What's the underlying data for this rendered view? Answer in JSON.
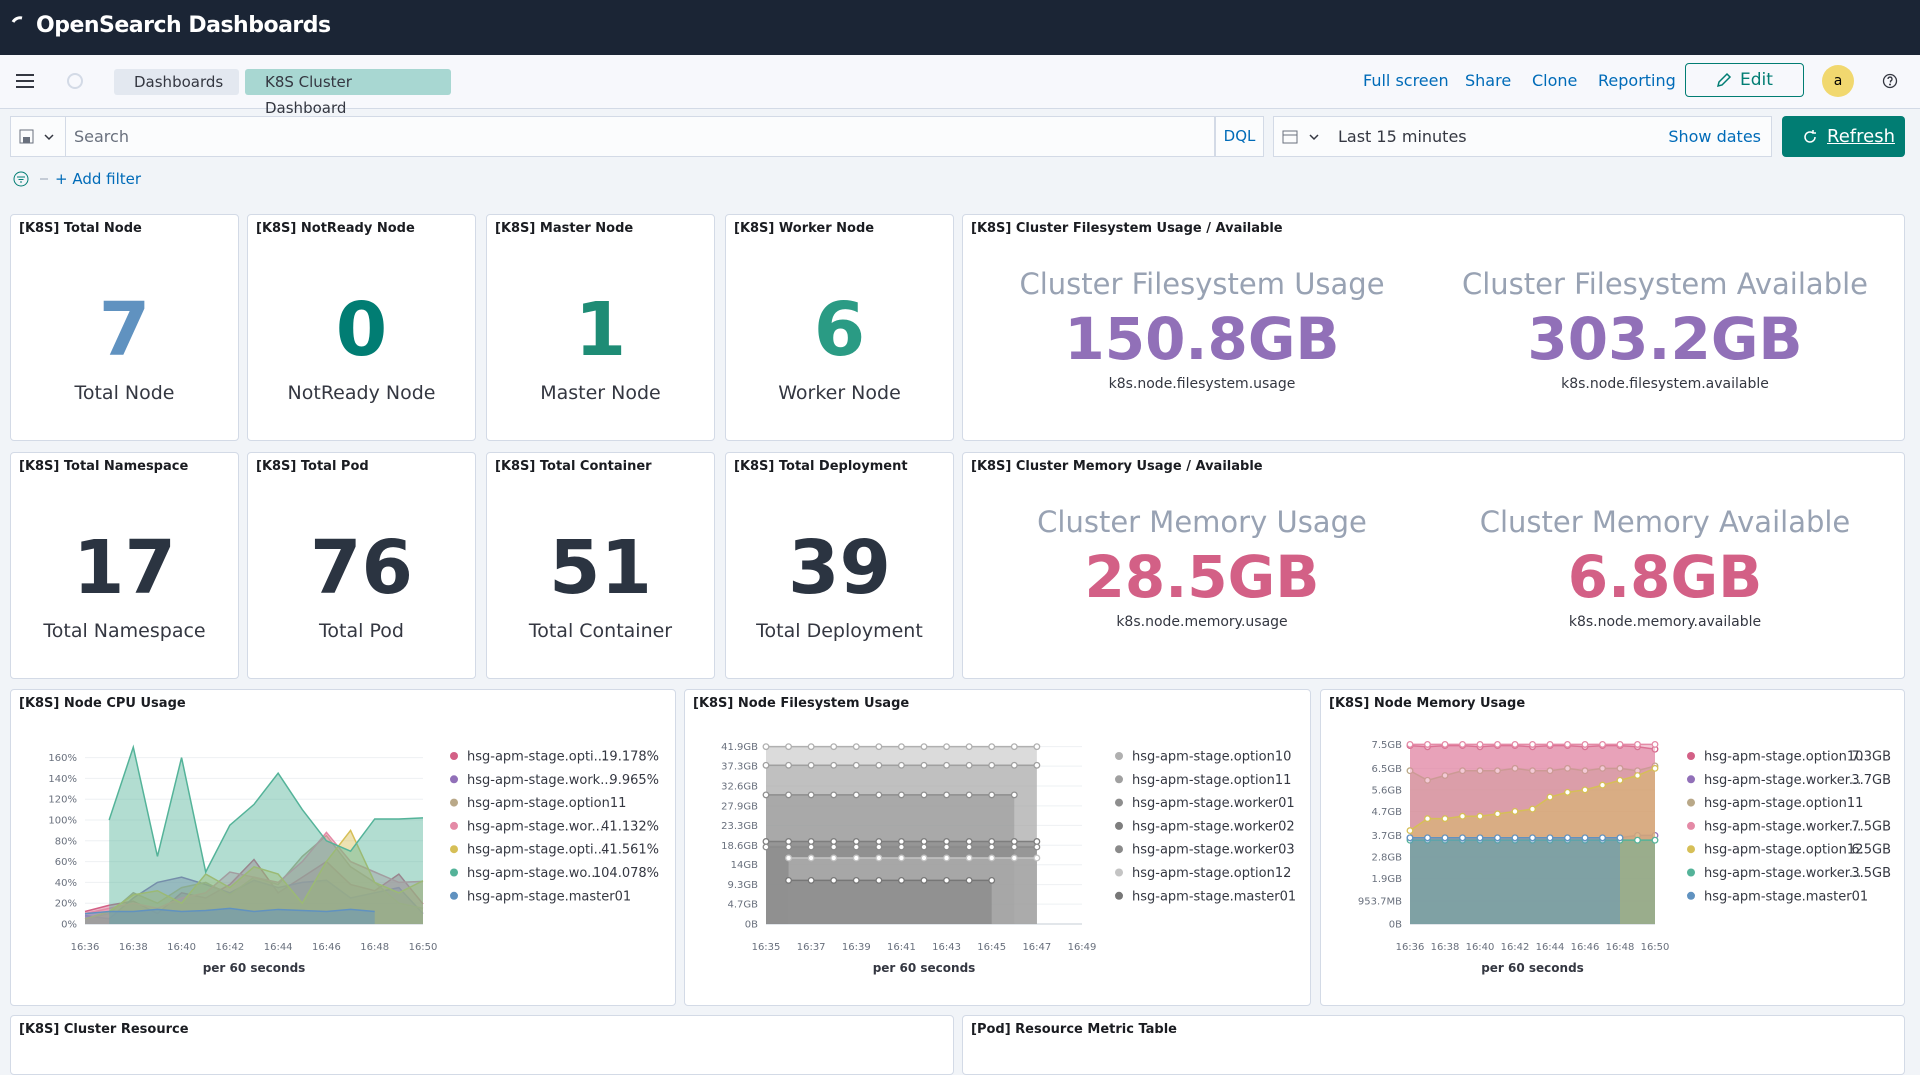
{
  "header": {
    "brand": "OpenSearch Dashboards"
  },
  "nav": {
    "breadcrumbs": [
      "Dashboards",
      "K8S Cluster Dashboard"
    ],
    "actions": [
      "Full screen",
      "Share",
      "Clone",
      "Reporting"
    ],
    "edit": "Edit",
    "avatar": "a"
  },
  "query": {
    "placeholder": "Search",
    "language": "DQL",
    "time": "Last 15 minutes",
    "show_dates": "Show dates",
    "refresh": "Refresh",
    "add_filter": "+ Add filter"
  },
  "metrics": [
    {
      "title": "[K8S] Total Node",
      "value": 7,
      "label": "Total Node",
      "color": "#6092c0"
    },
    {
      "title": "[K8S] NotReady Node",
      "value": 0,
      "label": "NotReady Node",
      "color": "#017d73"
    },
    {
      "title": "[K8S] Master Node",
      "value": 1,
      "label": "Master Node",
      "color": "#1e8c75"
    },
    {
      "title": "[K8S] Worker Node",
      "value": 6,
      "label": "Worker Node",
      "color": "#2a9b84"
    },
    {
      "title": "[K8S] Total Namespace",
      "value": 17,
      "label": "Total Namespace",
      "color": "#2b3441"
    },
    {
      "title": "[K8S] Total Pod",
      "value": 76,
      "label": "Total Pod",
      "color": "#2b3441"
    },
    {
      "title": "[K8S] Total Container",
      "value": 51,
      "label": "Total Container",
      "color": "#2b3441"
    },
    {
      "title": "[K8S] Total Deployment",
      "value": 39,
      "label": "Total Deployment",
      "color": "#2b3441"
    }
  ],
  "dual_metrics": [
    {
      "title": "[K8S] Cluster Filesystem Usage / Available",
      "color": "#9170b8",
      "items": [
        {
          "label": "Cluster Filesystem Usage",
          "value": "150.8GB",
          "field": "k8s.node.filesystem.usage"
        },
        {
          "label": "Cluster Filesystem Available",
          "value": "303.2GB",
          "field": "k8s.node.filesystem.available"
        }
      ]
    },
    {
      "title": "[K8S] Cluster Memory Usage / Available",
      "color": "#d36086",
      "items": [
        {
          "label": "Cluster Memory Usage",
          "value": "28.5GB",
          "field": "k8s.node.memory.usage"
        },
        {
          "label": "Cluster Memory Available",
          "value": "6.8GB",
          "field": "k8s.node.memory.available"
        }
      ]
    }
  ],
  "charts": [
    {
      "type": "area",
      "title": "[K8S] Node CPU Usage",
      "x_label": "per 60 seconds",
      "grid": true,
      "dots": false,
      "categories": [
        "16:36",
        "16:37",
        "16:38",
        "16:39",
        "16:40",
        "16:41",
        "16:42",
        "16:43",
        "16:44",
        "16:45",
        "16:46",
        "16:47",
        "16:48",
        "16:49",
        "16:50"
      ],
      "xticks": [
        "16:36",
        "16:38",
        "16:40",
        "16:42",
        "16:44",
        "16:46",
        "16:48",
        "16:50"
      ],
      "ylim": [
        0,
        175
      ],
      "yticks": [
        {
          "value": 0,
          "label": "0%"
        },
        {
          "value": 20,
          "label": "20%"
        },
        {
          "value": 40,
          "label": "40%"
        },
        {
          "value": 60,
          "label": "60%"
        },
        {
          "value": 80,
          "label": "80%"
        },
        {
          "value": 100,
          "label": "100%"
        },
        {
          "value": 120,
          "label": "120%"
        },
        {
          "value": 140,
          "label": "140%"
        },
        {
          "value": 160,
          "label": "160%"
        }
      ],
      "series": [
        {
          "name": "hsg-apm-stage.opti...",
          "legend_value": "19.178%",
          "color": "#d36086",
          "values": [
            12,
            18,
            22,
            10,
            30,
            25,
            38,
            62,
            30,
            45,
            60,
            38,
            32,
            48,
            19.2
          ]
        },
        {
          "name": "hsg-apm-stage.work...",
          "legend_value": "9.965%",
          "color": "#9170b8",
          "values": [
            8,
            5,
            25,
            40,
            45,
            38,
            30,
            42,
            35,
            40,
            42,
            25,
            30,
            35,
            10
          ]
        },
        {
          "name": "hsg-apm-stage.option11",
          "color": "#b9a888",
          "values": [
            5,
            10,
            30,
            20,
            35,
            40,
            28,
            45,
            38,
            65,
            85,
            55,
            40,
            20,
            15
          ]
        },
        {
          "name": "hsg-apm-stage.wor...",
          "legend_value": "41.132%",
          "color": "#e48aa6",
          "values": [
            10,
            15,
            20,
            15,
            25,
            30,
            50,
            45,
            40,
            60,
            88,
            60,
            50,
            40,
            41
          ]
        },
        {
          "name": "hsg-apm-stage.opti...",
          "legend_value": "41.561%",
          "color": "#d6bf57",
          "values": [
            5,
            12,
            28,
            32,
            20,
            48,
            35,
            55,
            48,
            20,
            60,
            90,
            40,
            30,
            41.6
          ]
        },
        {
          "name": "hsg-apm-stage.wo...",
          "legend_value": "104.078%",
          "color": "#54b399",
          "values": [
            null,
            100,
            170,
            65,
            160,
            50,
            95,
            115,
            145,
            110,
            80,
            70,
            101,
            101,
            102
          ]
        },
        {
          "name": "hsg-apm-stage.master01",
          "color": "#6092c0",
          "values": [
            10,
            12,
            12,
            14,
            12,
            13,
            15,
            12,
            14,
            13,
            12,
            14,
            12,
            null,
            null
          ]
        }
      ]
    },
    {
      "type": "area",
      "title": "[K8S] Node Filesystem Usage",
      "x_label": "per 60 seconds",
      "grid": true,
      "dots": true,
      "categories": [
        "16:35",
        "16:36",
        "16:37",
        "16:38",
        "16:39",
        "16:40",
        "16:41",
        "16:42",
        "16:43",
        "16:44",
        "16:45",
        "16:46",
        "16:47",
        "16:48",
        "16:49"
      ],
      "xticks": [
        "16:35",
        "16:37",
        "16:39",
        "16:41",
        "16:43",
        "16:45",
        "16:47",
        "16:49"
      ],
      "ylim": [
        0,
        43
      ],
      "yticks": [
        {
          "value": 0,
          "label": "0B"
        },
        {
          "value": 4.7,
          "label": "4.7GB"
        },
        {
          "value": 9.3,
          "label": "9.3GB"
        },
        {
          "value": 14,
          "label": "14GB"
        },
        {
          "value": 18.6,
          "label": "18.6GB"
        },
        {
          "value": 23.3,
          "label": "23.3GB"
        },
        {
          "value": 27.9,
          "label": "27.9GB"
        },
        {
          "value": 32.6,
          "label": "32.6GB"
        },
        {
          "value": 37.3,
          "label": "37.3GB"
        },
        {
          "value": 41.9,
          "label": "41.9GB"
        }
      ],
      "series": [
        {
          "name": "hsg-apm-stage.option10",
          "color": "#b0b0b0",
          "values": [
            41.9,
            41.9,
            41.9,
            41.9,
            41.9,
            41.9,
            41.9,
            41.9,
            41.9,
            41.9,
            41.9,
            41.9,
            41.9,
            null,
            null
          ]
        },
        {
          "name": "hsg-apm-stage.option11",
          "color": "#a0a0a0",
          "values": [
            37.5,
            37.5,
            37.5,
            37.5,
            37.5,
            37.5,
            37.5,
            37.5,
            37.5,
            37.5,
            37.5,
            37.5,
            37.5,
            null,
            null
          ]
        },
        {
          "name": "hsg-apm-stage.worker01",
          "color": "#8e8e8e",
          "values": [
            30.5,
            30.5,
            30.5,
            30.5,
            30.5,
            30.5,
            30.5,
            30.5,
            30.5,
            30.5,
            30.5,
            30.5,
            null,
            null,
            null
          ]
        },
        {
          "name": "hsg-apm-stage.worker02",
          "color": "#7e7e7e",
          "values": [
            19.5,
            19.5,
            19.5,
            19.5,
            19.5,
            19.5,
            19.5,
            19.5,
            19.5,
            19.5,
            19.5,
            19.5,
            19.5,
            null,
            null
          ]
        },
        {
          "name": "hsg-apm-stage.worker03",
          "color": "#8a8a8a",
          "values": [
            18.2,
            18.2,
            18.2,
            18.2,
            18.2,
            18.2,
            18.2,
            18.2,
            18.2,
            18.2,
            18.2,
            18.2,
            18.2,
            null,
            null
          ]
        },
        {
          "name": "hsg-apm-stage.option12",
          "color": "#c4c4c4",
          "values": [
            null,
            15.6,
            15.6,
            15.6,
            15.6,
            15.6,
            15.6,
            15.6,
            15.6,
            15.6,
            15.6,
            15.6,
            15.6,
            null,
            null
          ]
        },
        {
          "name": "hsg-apm-stage.master01",
          "color": "#777777",
          "values": [
            null,
            10.3,
            10.3,
            10.3,
            10.3,
            10.3,
            10.3,
            10.3,
            10.3,
            10.3,
            10.3,
            null,
            null,
            null,
            null
          ]
        }
      ]
    },
    {
      "type": "area",
      "title": "[K8S] Node Memory Usage",
      "x_label": "per 60 seconds",
      "grid": true,
      "dots": true,
      "categories": [
        "16:36",
        "16:37",
        "16:38",
        "16:39",
        "16:40",
        "16:41",
        "16:42",
        "16:43",
        "16:44",
        "16:45",
        "16:46",
        "16:47",
        "16:48",
        "16:49",
        "16:50"
      ],
      "xticks": [
        "16:36",
        "16:38",
        "16:40",
        "16:42",
        "16:44",
        "16:46",
        "16:48",
        "16:50"
      ],
      "ylim": [
        0,
        7.6
      ],
      "yticks": [
        {
          "value": 0,
          "label": "0B"
        },
        {
          "value": 0.9537,
          "label": "953.7MB"
        },
        {
          "value": 1.9,
          "label": "1.9GB"
        },
        {
          "value": 2.8,
          "label": "2.8GB"
        },
        {
          "value": 3.7,
          "label": "3.7GB"
        },
        {
          "value": 4.7,
          "label": "4.7GB"
        },
        {
          "value": 5.6,
          "label": "5.6GB"
        },
        {
          "value": 6.5,
          "label": "6.5GB"
        },
        {
          "value": 7.5,
          "label": "7.5GB"
        }
      ],
      "series": [
        {
          "name": "hsg-apm-stage.option10",
          "legend_value": "7.3GB",
          "color": "#d36086",
          "values": [
            7.45,
            7.4,
            7.45,
            7.45,
            7.4,
            7.45,
            7.45,
            7.4,
            7.45,
            7.45,
            7.4,
            7.45,
            7.45,
            7.4,
            7.3
          ]
        },
        {
          "name": "hsg-apm-stage.worker...",
          "legend_value": "3.7GB",
          "color": "#9170b8",
          "values": [
            3.6,
            3.6,
            3.6,
            3.6,
            3.6,
            3.6,
            3.6,
            3.6,
            3.6,
            3.6,
            3.6,
            3.6,
            3.6,
            3.7,
            3.7
          ]
        },
        {
          "name": "hsg-apm-stage.option11",
          "color": "#b9a888",
          "values": [
            6.4,
            6.0,
            6.2,
            6.4,
            6.4,
            6.4,
            6.5,
            6.4,
            6.4,
            6.5,
            6.4,
            6.5,
            6.5,
            6.4,
            6.6
          ]
        },
        {
          "name": "hsg-apm-stage.worker...",
          "legend_value": "7.5GB",
          "color": "#e48aa6",
          "values": [
            7.5,
            7.5,
            7.5,
            7.5,
            7.5,
            7.5,
            7.5,
            7.5,
            7.5,
            7.5,
            7.5,
            7.5,
            7.5,
            7.5,
            7.5
          ]
        },
        {
          "name": "hsg-apm-stage.option12",
          "legend_value": "6.5GB",
          "color": "#d6bf57",
          "values": [
            3.9,
            4.4,
            4.4,
            4.5,
            4.5,
            4.6,
            4.7,
            4.8,
            5.3,
            5.5,
            5.6,
            5.8,
            6.0,
            6.2,
            6.5
          ]
        },
        {
          "name": "hsg-apm-stage.worker...",
          "legend_value": "3.5GB",
          "color": "#54b399",
          "values": [
            3.5,
            3.5,
            3.5,
            3.5,
            3.5,
            3.5,
            3.5,
            3.5,
            3.5,
            3.5,
            3.5,
            3.5,
            3.5,
            3.5,
            3.5
          ]
        },
        {
          "name": "hsg-apm-stage.master01",
          "color": "#6092c0",
          "values": [
            3.6,
            3.6,
            3.6,
            3.6,
            3.6,
            3.6,
            3.6,
            3.6,
            3.6,
            3.6,
            3.6,
            3.6,
            3.6,
            null,
            null
          ]
        }
      ]
    }
  ],
  "bottom_panels": [
    "[K8S] Cluster Resource",
    "[Pod] Resource Metric Table"
  ]
}
